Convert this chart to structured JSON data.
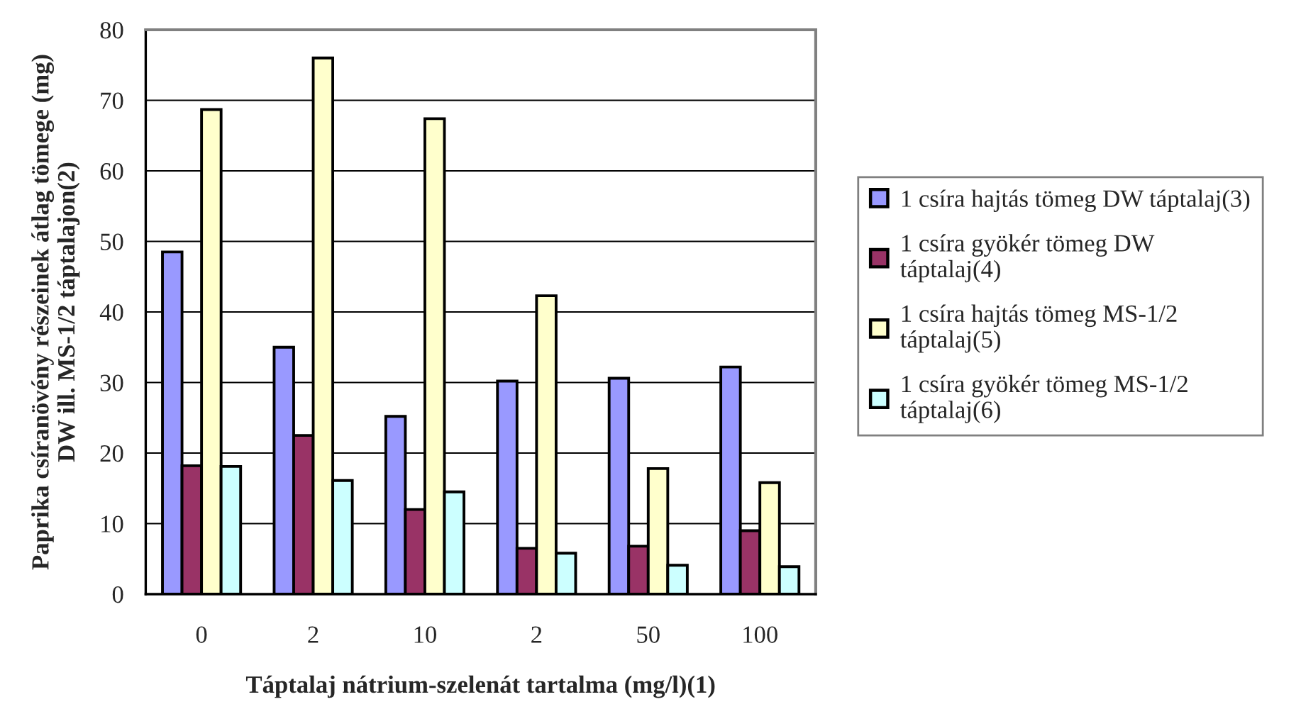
{
  "chart_data": {
    "type": "bar",
    "xlabel": "Táptalaj nátrium-szelenát tartalma (mg/l)(1)",
    "ylabel": "Paprika csíranövény részeinek átlag tömege (mg)\nDW ill. MS-1/2 táptalajon(2)",
    "categories": [
      "0",
      "2",
      "10",
      "2",
      "50",
      "100"
    ],
    "series": [
      {
        "name": "1 csíra hajtás tömeg DW táptalaj(3)",
        "color": "#9999ff",
        "values": [
          48.5,
          35,
          25.2,
          30.2,
          30.6,
          32.2
        ]
      },
      {
        "name": "1 csíra gyökér tömeg DW\ntáptalaj(4)",
        "color": "#993366",
        "values": [
          18.2,
          22.5,
          12,
          6.5,
          6.8,
          9
        ]
      },
      {
        "name": "1 csíra hajtás tömeg MS-1/2\ntáptalaj(5)",
        "color": "#ffffcc",
        "values": [
          68.7,
          76,
          67.4,
          42.3,
          17.8,
          15.8
        ]
      },
      {
        "name": "1 csíra gyökér tömeg MS-1/2\ntáptalaj(6)",
        "color": "#ccffff",
        "values": [
          18.1,
          16.1,
          14.5,
          5.8,
          4.1,
          3.9
        ]
      }
    ],
    "ylim": [
      0,
      80
    ],
    "yticks": [
      0,
      10,
      20,
      30,
      40,
      50,
      60,
      70,
      80
    ],
    "grid": "y",
    "legend": "right"
  }
}
